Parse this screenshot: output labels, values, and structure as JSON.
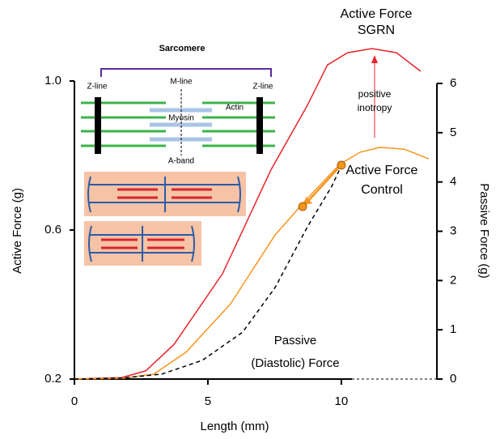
{
  "chart_data": {
    "type": "line",
    "x_label": "Length (mm)",
    "y_label": "Active Force (g)",
    "y2_label": "Passive Force (g)",
    "xlim": [
      0,
      13.58
    ],
    "xticks": [
      0,
      5,
      10
    ],
    "ylim": [
      0.2,
      1.0
    ],
    "yticks": [
      0.2,
      0.6,
      {
        "value": 1.0,
        "label": "1.0"
      }
    ],
    "y2lim": [
      0,
      6
    ],
    "y2ticks": [
      0,
      1,
      2,
      3,
      4,
      5,
      6
    ],
    "series": [
      {
        "color": "#e8262a",
        "dash": false,
        "x": [
          0,
          1.76,
          2.67,
          3.73,
          5.55,
          7.36,
          8.73,
          9.48,
          10.24,
          11.15,
          12.06,
          12.97
        ],
        "values": [
          0.2,
          0.204,
          0.222,
          0.293,
          0.483,
          0.761,
          0.935,
          1.043,
          1.076,
          1.087,
          1.076,
          1.026
        ]
      },
      {
        "color": "#f7941d",
        "dash": false,
        "x": [
          0,
          1.76,
          2.97,
          4.18,
          5.85,
          7.52,
          8.73,
          9.94,
          10.7,
          11.45,
          12.36,
          13.27
        ],
        "values": [
          0.2,
          0.202,
          0.213,
          0.272,
          0.402,
          0.587,
          0.685,
          0.776,
          0.809,
          0.822,
          0.817,
          0.791
        ]
      },
      {
        "color": "#000000",
        "dash": true,
        "axis": "y2",
        "x": [
          0,
          1.76,
          3.27,
          4.79,
          6.3,
          7.52,
          8.73,
          9.64,
          10
        ],
        "values": [
          0,
          0.02,
          0.1,
          0.38,
          0.95,
          1.86,
          3.09,
          3.91,
          4.33
        ]
      }
    ],
    "markers": {
      "color": "#f7941d",
      "x": [
        8.55,
        10
      ],
      "values": [
        0.663,
        0.774
      ]
    },
    "annotations": [
      {
        "lines": [
          "Active Force",
          "SGRN"
        ],
        "color": "#e8262a"
      },
      {
        "lines": [
          "positive",
          "inotropy"
        ],
        "color": "#e8262a"
      },
      {
        "lines": [
          "Active Force",
          "Control"
        ],
        "color": "#f7941d"
      },
      {
        "lines": [
          "Passive",
          "(Diastolic) Force"
        ],
        "color": "#000000"
      }
    ],
    "inset": {
      "title": "Sarcomere",
      "z_line_left": "Z-line",
      "m_line": "M-line",
      "z_line_right": "Z-line",
      "actin": "Actin",
      "myosin": "Myosin",
      "a_band": "A-band"
    }
  }
}
